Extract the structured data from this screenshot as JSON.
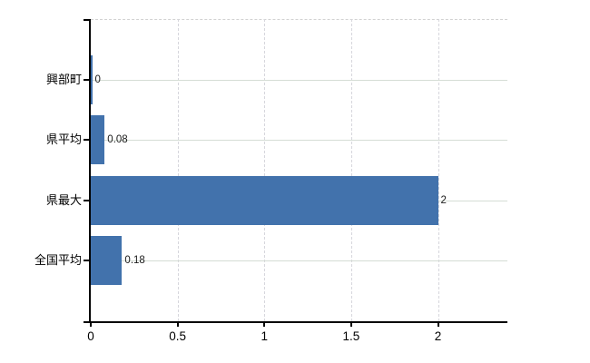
{
  "chart_data": {
    "type": "bar",
    "orientation": "horizontal",
    "title": "",
    "xlabel": "",
    "ylabel": "",
    "categories": [
      "興部町",
      "県平均",
      "県最大",
      "全国平均"
    ],
    "values": [
      0,
      0.08,
      2,
      0.18
    ],
    "value_labels": [
      "0",
      "0.08",
      "2",
      "0.18"
    ],
    "x_ticks": [
      0,
      0.5,
      1,
      1.5,
      2
    ],
    "x_tick_labels": [
      "0",
      "0.5",
      "1",
      "1.5",
      "2"
    ],
    "xlim": [
      0,
      2.4
    ],
    "grid": "on",
    "legend": "none",
    "colors": {
      "bar": "#4272ac",
      "gridline_horizontal": "#d5ddd5",
      "gridline_vertical": "#d6d6dc",
      "axis": "#000000",
      "text": "#000000",
      "background": "#ffffff"
    }
  }
}
